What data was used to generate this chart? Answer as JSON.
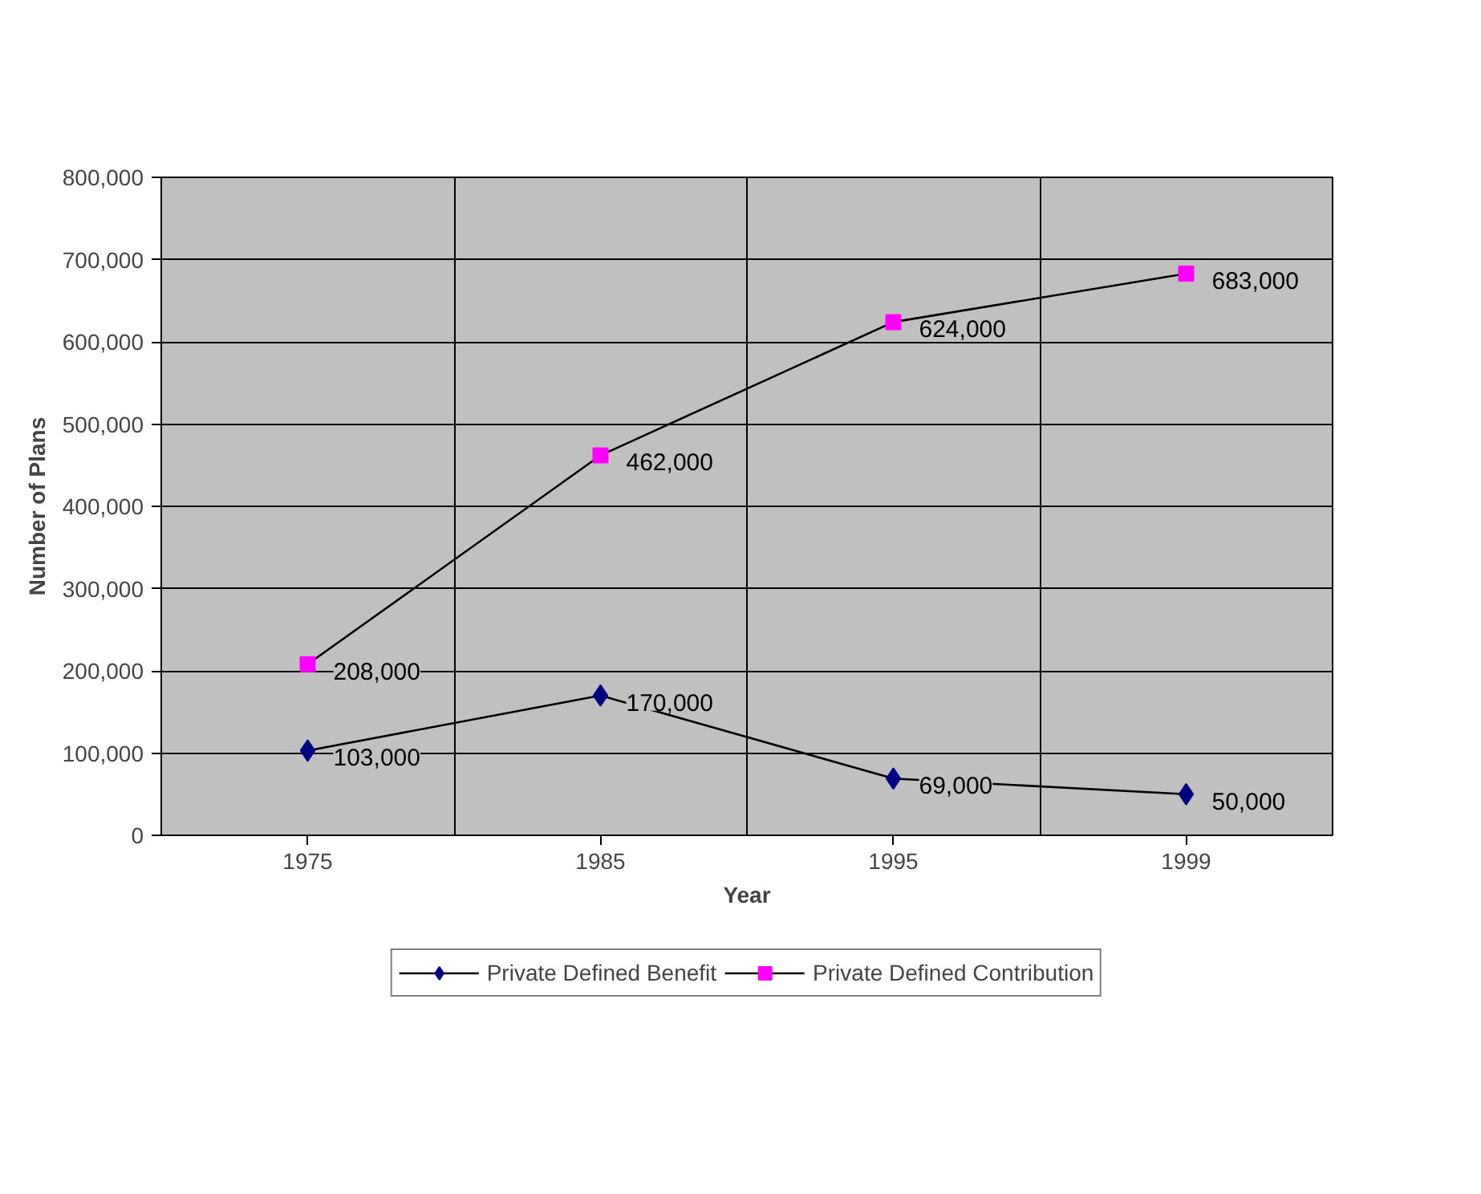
{
  "chart_data": {
    "type": "line",
    "xlabel": "Year",
    "ylabel": "Number of Plans",
    "categories": [
      "1975",
      "1985",
      "1995",
      "1999"
    ],
    "series": [
      {
        "name": "Private Defined Benefit",
        "color": "#000080",
        "marker": "diamond",
        "values": [
          103000,
          170000,
          69000,
          50000
        ],
        "value_labels": [
          "103,000",
          "170,000",
          "69,000",
          "50,000"
        ]
      },
      {
        "name": "Private Defined Contribution",
        "color": "#ff00ff",
        "marker": "square",
        "values": [
          208000,
          462000,
          624000,
          683000
        ],
        "value_labels": [
          "208,000",
          "462,000",
          "624,000",
          "683,000"
        ]
      }
    ],
    "ylim": [
      0,
      800000
    ],
    "yticks": [
      {
        "value": 0,
        "label": "0"
      },
      {
        "value": 100000,
        "label": "100,000"
      },
      {
        "value": 200000,
        "label": "200,000"
      },
      {
        "value": 300000,
        "label": "300,000"
      },
      {
        "value": 400000,
        "label": "400,000"
      },
      {
        "value": 500000,
        "label": "500,000"
      },
      {
        "value": 600000,
        "label": "600,000"
      },
      {
        "value": 700000,
        "label": "700,000"
      },
      {
        "value": 800000,
        "label": "800,000"
      }
    ],
    "grid": true,
    "legend": "bottom",
    "line_style": "solid"
  }
}
